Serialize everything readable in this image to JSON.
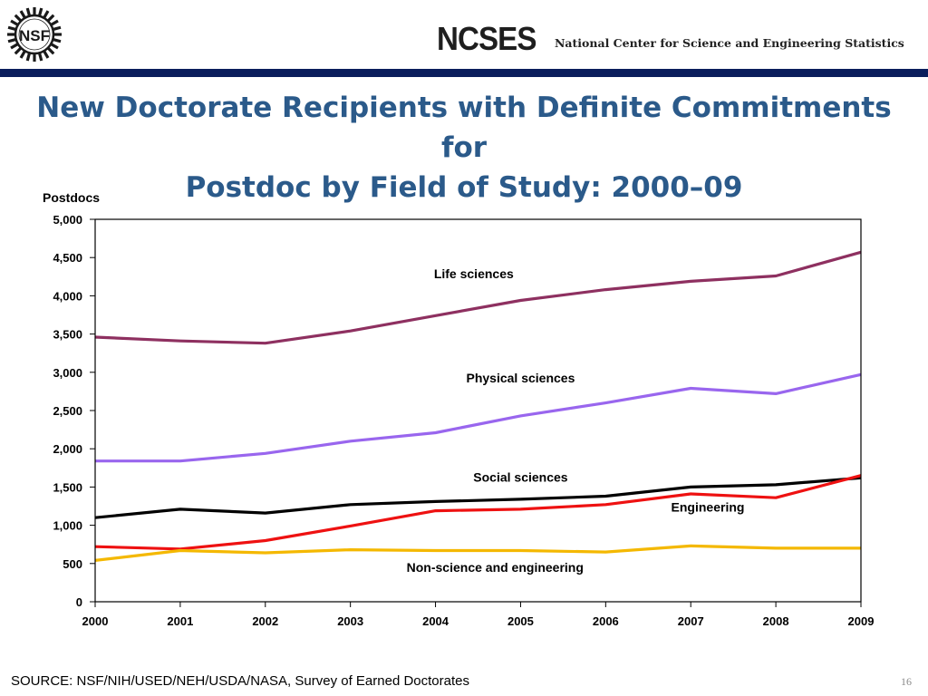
{
  "header": {
    "logo_text": "NSF",
    "org_acronym": "NCSES",
    "org_name": "National Center for Science and Engineering Statistics"
  },
  "title_line1": "New Doctorate Recipients with Definite Commitments for",
  "title_line2": "Postdoc by Field of Study: 2000–09",
  "chart_data": {
    "type": "line",
    "title": "New Doctorate Recipients with Definite Commitments for Postdoc by Field of Study: 2000–09",
    "ylabel": "Postdocs",
    "xlabel": "",
    "x": [
      "2000",
      "2001",
      "2002",
      "2003",
      "2004",
      "2005",
      "2006",
      "2007",
      "2008",
      "2009"
    ],
    "ylim": [
      0,
      5000
    ],
    "yticks": [
      0,
      500,
      1000,
      1500,
      2000,
      2500,
      3000,
      3500,
      4000,
      4500,
      5000
    ],
    "ytick_labels": [
      "0",
      "500",
      "1,000",
      "1,500",
      "2,000",
      "2,500",
      "3,000",
      "3,500",
      "4,000",
      "4,500",
      "5,000"
    ],
    "grid": false,
    "legend": "inline labels",
    "series": [
      {
        "name": "Life sciences",
        "color": "#8e3060",
        "values": [
          3460,
          3410,
          3380,
          3540,
          3740,
          3940,
          4080,
          4190,
          4260,
          4570
        ]
      },
      {
        "name": "Physical sciences",
        "color": "#9966ee",
        "values": [
          1840,
          1840,
          1940,
          2100,
          2210,
          2430,
          2600,
          2790,
          2720,
          2970
        ]
      },
      {
        "name": "Social sciences",
        "color": "#000000",
        "values": [
          1100,
          1210,
          1160,
          1270,
          1310,
          1340,
          1380,
          1500,
          1530,
          1620
        ]
      },
      {
        "name": "Engineering",
        "color": "#ee1111",
        "values": [
          720,
          690,
          800,
          990,
          1190,
          1210,
          1270,
          1410,
          1360,
          1650
        ]
      },
      {
        "name": "Non-science and engineering",
        "color": "#f4b800",
        "values": [
          540,
          670,
          640,
          680,
          670,
          670,
          650,
          730,
          700,
          700
        ]
      }
    ]
  },
  "footer": {
    "source": "SOURCE:  NSF/NIH/USED/NEH/USDA/NASA, Survey of Earned Doctorates",
    "page_number": "16"
  }
}
